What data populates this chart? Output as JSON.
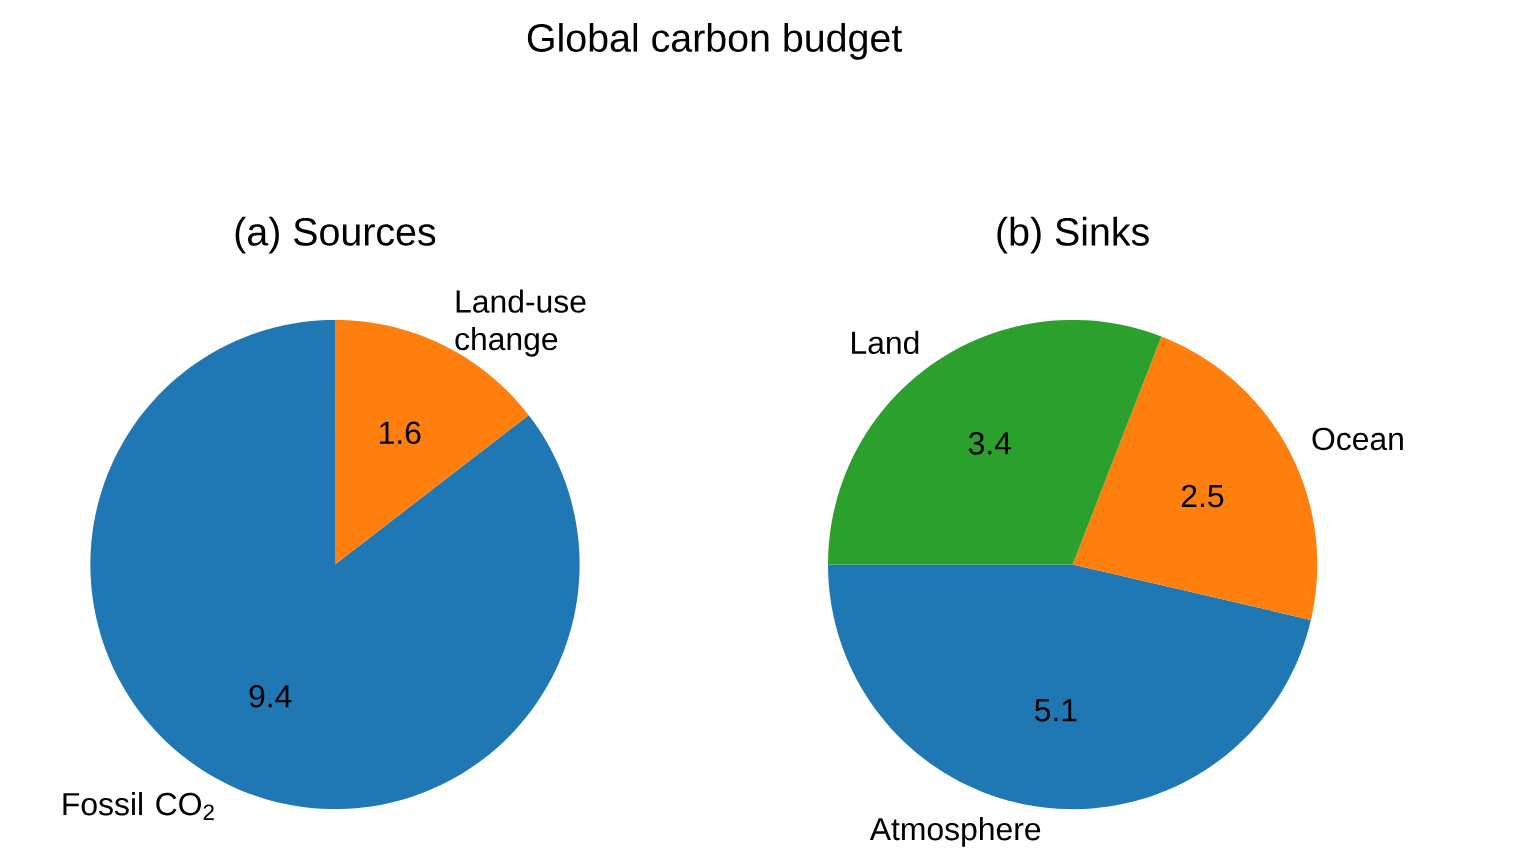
{
  "chart_data": [
    {
      "type": "pie",
      "title": "(a) Sources",
      "annotations": [
        "Global carbon budget"
      ],
      "categories": [
        "Fossil CO$_{2}$",
        "Land-use change"
      ],
      "values": [
        9.4,
        1.6
      ],
      "colors": [
        "#1f77b4",
        "#ff7f0e"
      ],
      "data_labels": true
    },
    {
      "type": "pie",
      "title": "(b) Sinks",
      "categories": [
        "Atmosphere",
        "Ocean",
        "Land"
      ],
      "values": [
        5.1,
        2.5,
        3.4
      ],
      "colors": [
        "#1f77b4",
        "#ff7f0e",
        "#2ca02c"
      ],
      "data_labels": true
    }
  ]
}
